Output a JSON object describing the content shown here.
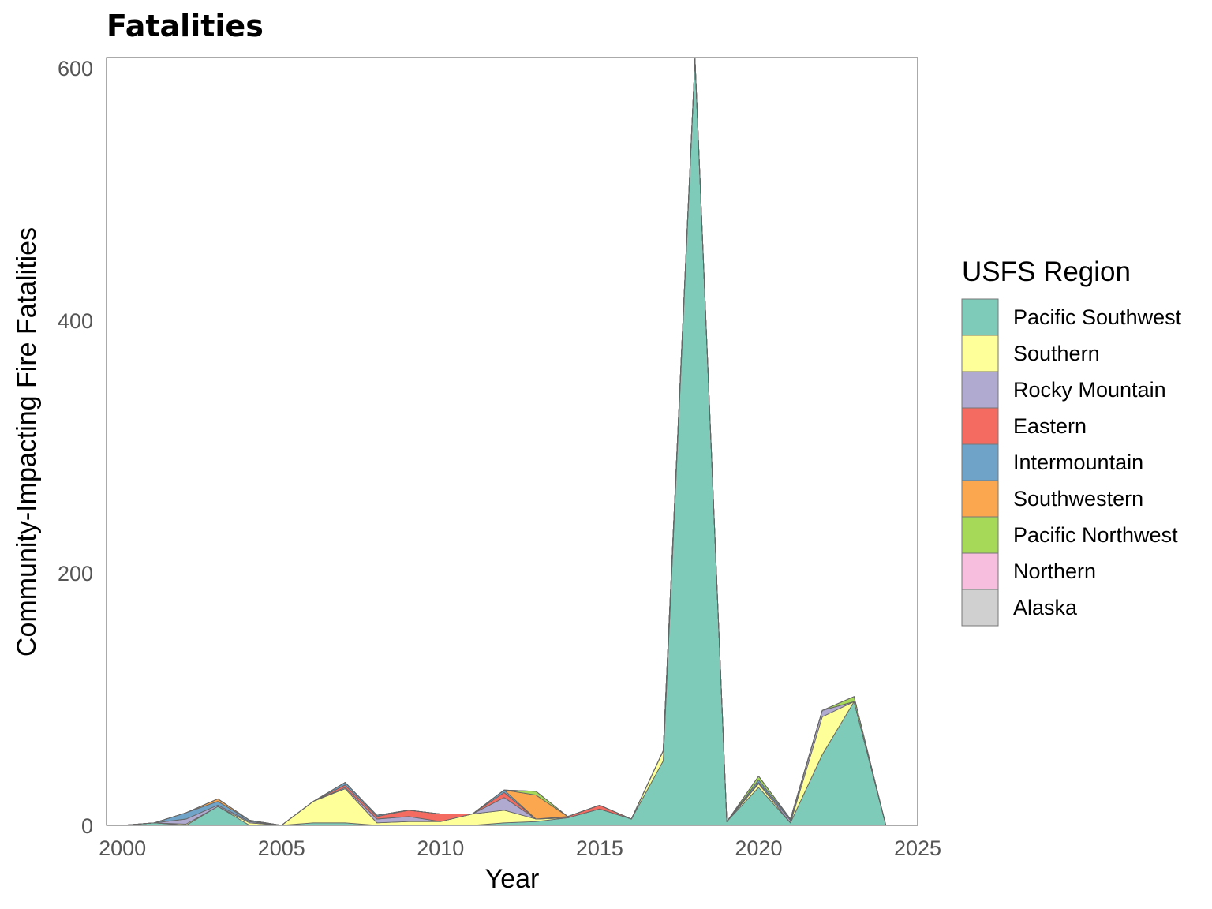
{
  "chart_data": {
    "type": "area",
    "title": "Fatalities",
    "xlabel": "Year",
    "ylabel": "Community-Impacting Fire Fatalities",
    "xlim": [
      1999.5,
      2025
    ],
    "ylim": [
      0,
      608
    ],
    "x_ticks": [
      2000,
      2005,
      2010,
      2015,
      2020,
      2025
    ],
    "y_ticks": [
      0,
      200,
      400,
      600
    ],
    "x_tick_labels": [
      "2000",
      "2005",
      "2010",
      "2015",
      "2020",
      "2025"
    ],
    "y_tick_labels": [
      "0",
      "200",
      "400",
      "600"
    ],
    "legend_title": "USFS Region",
    "legend_position": "right",
    "grid": false,
    "stacked": true,
    "x": [
      2000,
      2001,
      2002,
      2003,
      2004,
      2005,
      2006,
      2007,
      2008,
      2009,
      2010,
      2011,
      2012,
      2013,
      2014,
      2015,
      2016,
      2017,
      2018,
      2019,
      2020,
      2021,
      2022,
      2023,
      2024
    ],
    "series": [
      {
        "name": "Pacific Southwest",
        "color": "#7FCBBA",
        "values": [
          0,
          2,
          0,
          15,
          0,
          0,
          2,
          2,
          0,
          0,
          0,
          0,
          2,
          3,
          6,
          13,
          5,
          51,
          606,
          3,
          30,
          2,
          56,
          98,
          0
        ]
      },
      {
        "name": "Southern",
        "color": "#FFFF99",
        "values": [
          0,
          0,
          1,
          0,
          2,
          0,
          17,
          27,
          2,
          3,
          3,
          9,
          10,
          2,
          0,
          0,
          0,
          8,
          1,
          0,
          3,
          0,
          30,
          0,
          0
        ]
      },
      {
        "name": "Rocky Mountain",
        "color": "#B0AAD1",
        "values": [
          0,
          0,
          4,
          1,
          1,
          0,
          0,
          1,
          3,
          4,
          0,
          0,
          10,
          0,
          0,
          0,
          0,
          0,
          0,
          0,
          1,
          2,
          5,
          0,
          0
        ]
      },
      {
        "name": "Eastern",
        "color": "#F46B62",
        "values": [
          0,
          0,
          0,
          0,
          0,
          0,
          0,
          2,
          2,
          5,
          6,
          0,
          4,
          0,
          1,
          3,
          0,
          0,
          0,
          0,
          0,
          0,
          0,
          0,
          0
        ]
      },
      {
        "name": "Intermountain",
        "color": "#6FA3C8",
        "values": [
          0,
          0,
          5,
          3,
          1,
          0,
          0,
          2,
          1,
          0,
          0,
          0,
          2,
          0,
          0,
          0,
          0,
          0,
          0,
          0,
          2,
          1,
          0,
          0,
          0
        ]
      },
      {
        "name": "Southwestern",
        "color": "#FBA750",
        "values": [
          0,
          0,
          0,
          2,
          0,
          0,
          0,
          0,
          0,
          0,
          0,
          0,
          0,
          19,
          0,
          0,
          0,
          0,
          0,
          0,
          0,
          0,
          0,
          0,
          0
        ]
      },
      {
        "name": "Pacific Northwest",
        "color": "#A5D957",
        "values": [
          0,
          0,
          0,
          0,
          0,
          0,
          0,
          0,
          0,
          0,
          0,
          0,
          0,
          3,
          0,
          0,
          0,
          0,
          0,
          0,
          3,
          0,
          0,
          4,
          0
        ]
      },
      {
        "name": "Northern",
        "color": "#F7BEDE",
        "values": [
          0,
          0,
          0,
          0,
          0,
          0,
          0,
          0,
          0,
          0,
          0,
          0,
          0,
          0,
          0,
          0,
          0,
          0,
          0,
          0,
          0,
          0,
          0,
          0,
          0
        ]
      },
      {
        "name": "Alaska",
        "color": "#D0D0D0",
        "values": [
          0,
          0,
          0,
          0,
          0,
          0,
          0,
          0,
          0,
          0,
          0,
          0,
          0,
          0,
          0,
          0,
          0,
          0,
          0,
          0,
          0,
          0,
          0,
          0,
          0
        ]
      }
    ]
  }
}
